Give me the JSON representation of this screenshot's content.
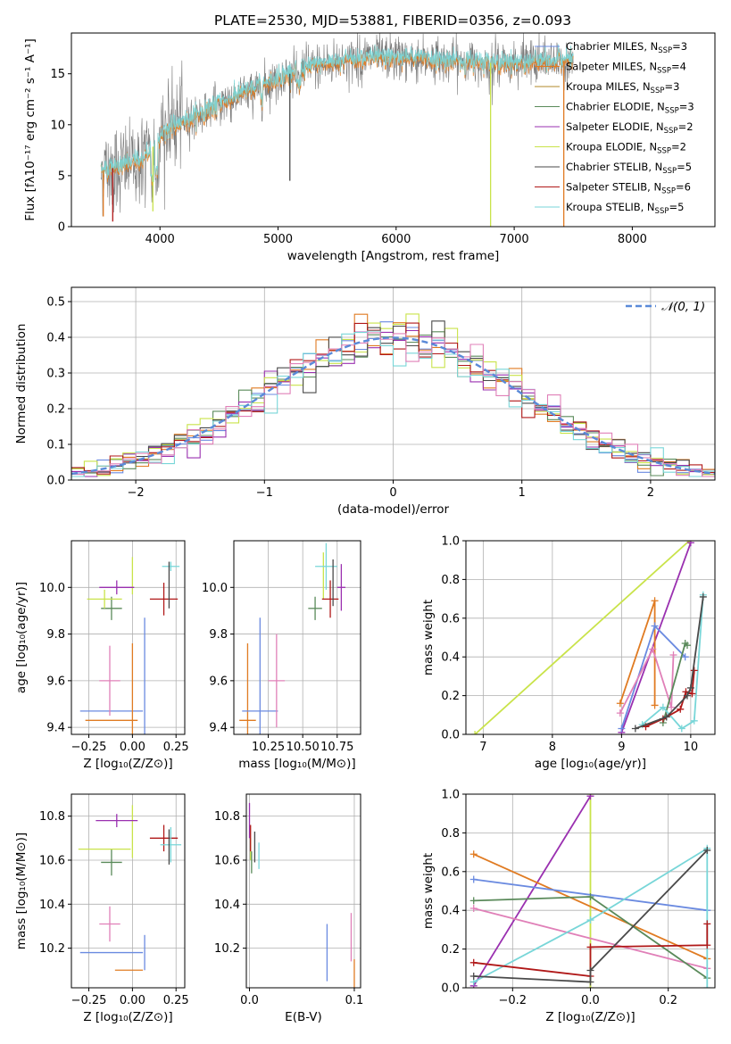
{
  "figure_title": "PLATE=2530, MJD=53881, FIBERID=0356, z=0.093",
  "colors": {
    "Chabrier MILES": "#6a8ae0",
    "Salpeter MILES": "#e07b22",
    "Kroupa MILES": "#b08a2a",
    "Chabrier ELODIE": "#5a8a5a",
    "Salpeter ELODIE": "#9a30b0",
    "Kroupa ELODIE": "#c9e34a",
    "Chabrier STELIB": "#4a4a4a",
    "Salpeter STELIB": "#b01818",
    "Kroupa STELIB": "#78d6d8",
    "Pink": "#e080b8",
    "gauss": "#5a8ad8"
  },
  "chart_data": [
    {
      "id": "spectrum",
      "type": "line",
      "xlabel": "wavelength [Angstrom, rest frame]",
      "ylabel": "Flux [fλ10⁻¹⁷ erg cm⁻² s⁻¹ A⁻¹]",
      "xlim": [
        3250,
        8700
      ],
      "ylim": [
        0,
        19
      ],
      "xticks": [
        4000,
        5000,
        6000,
        7000,
        8000
      ],
      "yticks": [
        0,
        5,
        10,
        15
      ],
      "grid": false,
      "legend": "top-right",
      "legend_entries": [
        {
          "base": "Chabrier MILES, N",
          "sub": "SSP",
          "tail": "=3"
        },
        {
          "base": "Salpeter MILES, N",
          "sub": "SSP",
          "tail": "=4"
        },
        {
          "base": "Kroupa MILES, N",
          "sub": "SSP",
          "tail": "=3"
        },
        {
          "base": "Chabrier ELODIE, N",
          "sub": "SSP",
          "tail": "=3"
        },
        {
          "base": "Salpeter ELODIE, N",
          "sub": "SSP",
          "tail": "=2"
        },
        {
          "base": "Kroupa ELODIE, N",
          "sub": "SSP",
          "tail": "=2"
        },
        {
          "base": "Chabrier STELIB, N",
          "sub": "SSP",
          "tail": "=5"
        },
        {
          "base": "Salpeter STELIB, N",
          "sub": "SSP",
          "tail": "=6"
        },
        {
          "base": "Kroupa STELIB, N",
          "sub": "SSP",
          "tail": "=5"
        }
      ],
      "continuum": [
        [
          3500,
          5.5
        ],
        [
          3700,
          6.0
        ],
        [
          3850,
          6.5
        ],
        [
          3950,
          8.0
        ],
        [
          4050,
          9.5
        ],
        [
          4300,
          10.8
        ],
        [
          4500,
          12.0
        ],
        [
          4800,
          13.5
        ],
        [
          5000,
          14.5
        ],
        [
          5200,
          15.5
        ],
        [
          5500,
          16.2
        ],
        [
          5800,
          16.6
        ],
        [
          6100,
          16.5
        ],
        [
          6400,
          16.3
        ],
        [
          6700,
          16.1
        ],
        [
          7000,
          16.0
        ],
        [
          7300,
          16.2
        ],
        [
          7500,
          16.3
        ]
      ],
      "glitches": [
        [
          3520,
          1.0
        ],
        [
          3600,
          0.5
        ],
        [
          3940,
          1.5
        ],
        [
          5100,
          4.5
        ],
        [
          6800,
          0.0
        ],
        [
          7420,
          0.0
        ]
      ]
    },
    {
      "id": "residual-hist",
      "type": "line",
      "xlabel": "(data-model)/error",
      "ylabel": "Normed distribution",
      "xlim": [
        -2.5,
        2.5
      ],
      "ylim": [
        0,
        0.54
      ],
      "xticks": [
        -2,
        -1,
        0,
        1,
        2
      ],
      "yticks": [
        0.0,
        0.1,
        0.2,
        0.3,
        0.4,
        0.5
      ],
      "grid": true,
      "legend": "top-right",
      "legend_label": "𝒩(0, 1)",
      "bin_width": 0.1,
      "bin_start": -2.5
    },
    {
      "id": "age-vs-z",
      "type": "scatter",
      "xlabel": "Z [log₁₀(Z/Z⊙)]",
      "ylabel": "age  [log₁₀(age/yr)]",
      "xlim": [
        -0.35,
        0.3
      ],
      "ylim": [
        9.37,
        10.2
      ],
      "xticks": [
        -0.25,
        0.0,
        0.25
      ],
      "xtick_labels": [
        "−0.25",
        "0.00",
        "0.25"
      ],
      "yticks": [
        9.4,
        9.6,
        9.8,
        10.0
      ],
      "grid": true,
      "points": [
        {
          "c": "Chabrier MILES",
          "x": -0.12,
          "xe": 0.18,
          "y": 9.47,
          "ye": 0.0
        },
        {
          "c": "Chabrier MILES",
          "x": 0.07,
          "xe": 0.0,
          "y": 9.47,
          "ye": 0.4
        },
        {
          "c": "Salpeter MILES",
          "x": -0.12,
          "xe": 0.15,
          "y": 9.43,
          "ye": 0.0
        },
        {
          "c": "Salpeter MILES",
          "x": -0.0,
          "xe": 0.0,
          "y": 9.43,
          "ye": 0.33
        },
        {
          "c": "Pink",
          "x": -0.13,
          "xe": 0.06,
          "y": 9.6,
          "ye": 0.15
        },
        {
          "c": "Chabrier ELODIE",
          "x": -0.12,
          "xe": 0.06,
          "y": 9.91,
          "ye": 0.05
        },
        {
          "c": "Kroupa ELODIE",
          "x": -0.16,
          "xe": 0.1,
          "y": 9.95,
          "ye": 0.04
        },
        {
          "c": "Kroupa ELODIE",
          "x": 0.0,
          "xe": 0.0,
          "y": 10.05,
          "ye": 0.08
        },
        {
          "c": "Salpeter ELODIE",
          "x": -0.09,
          "xe": 0.1,
          "y": 10.0,
          "ye": 0.03
        },
        {
          "c": "Salpeter STELIB",
          "x": 0.18,
          "xe": 0.08,
          "y": 9.95,
          "ye": 0.07
        },
        {
          "c": "Kroupa STELIB",
          "x": 0.22,
          "xe": 0.05,
          "y": 10.09,
          "ye": 0.02
        },
        {
          "c": "Chabrier STELIB",
          "x": 0.21,
          "xe": 0.0,
          "y": 10.01,
          "ye": 0.1
        }
      ]
    },
    {
      "id": "age-vs-mass",
      "type": "scatter",
      "xlabel": "mass [log₁₀(M/M⊙)]",
      "ylabel": "",
      "xlim": [
        10.0,
        10.92
      ],
      "ylim": [
        9.37,
        10.2
      ],
      "xticks": [
        10.25,
        10.5,
        10.75
      ],
      "xtick_labels": [
        "10.25",
        "10.50",
        "10.75"
      ],
      "yticks": [
        9.4,
        9.6,
        9.8,
        10.0
      ],
      "grid": true,
      "points": [
        {
          "c": "Salpeter MILES",
          "x": 10.1,
          "xe": 0.06,
          "y": 9.43,
          "ye": 0.33
        },
        {
          "c": "Chabrier MILES",
          "x": 10.19,
          "xe": 0.13,
          "y": 9.47,
          "ye": 0.4
        },
        {
          "c": "Pink",
          "x": 10.31,
          "xe": 0.06,
          "y": 9.6,
          "ye": 0.2
        },
        {
          "c": "Chabrier ELODIE",
          "x": 10.59,
          "xe": 0.05,
          "y": 9.91,
          "ye": 0.05
        },
        {
          "c": "Kroupa ELODIE",
          "x": 10.65,
          "xe": 0.0,
          "y": 10.05,
          "ye": 0.1
        },
        {
          "c": "Kroupa STELIB",
          "x": 10.67,
          "xe": 0.08,
          "y": 10.09,
          "ye": 0.1
        },
        {
          "c": "Salpeter STELIB",
          "x": 10.7,
          "xe": 0.06,
          "y": 9.95,
          "ye": 0.08
        },
        {
          "c": "Chabrier STELIB",
          "x": 10.72,
          "xe": 0.0,
          "y": 10.02,
          "ye": 0.1
        },
        {
          "c": "Salpeter ELODIE",
          "x": 10.78,
          "xe": 0.03,
          "y": 10.0,
          "ye": 0.1
        }
      ]
    },
    {
      "id": "weight-vs-age",
      "type": "line",
      "xlabel": "age  [log₁₀(age/yr)]",
      "ylabel": "mass weight",
      "xlim": [
        6.75,
        10.35
      ],
      "ylim": [
        0,
        1.0
      ],
      "xticks": [
        7,
        8,
        9,
        10
      ],
      "yticks": [
        0.0,
        0.2,
        0.4,
        0.6,
        0.8,
        1.0
      ],
      "grid": true,
      "series": [
        {
          "c": "Kroupa ELODIE",
          "pts": [
            [
              6.88,
              0.0
            ],
            [
              9.98,
              1.0
            ]
          ]
        },
        {
          "c": "Salpeter ELODIE",
          "pts": [
            [
              9.0,
              0.01
            ],
            [
              10.0,
              0.99
            ]
          ]
        },
        {
          "c": "Salpeter MILES",
          "pts": [
            [
              8.98,
              0.16
            ],
            [
              9.48,
              0.69
            ],
            [
              9.48,
              0.15
            ]
          ]
        },
        {
          "c": "Chabrier MILES",
          "pts": [
            [
              9.0,
              0.03
            ],
            [
              9.48,
              0.56
            ],
            [
              9.92,
              0.4
            ]
          ]
        },
        {
          "c": "Pink",
          "pts": [
            [
              8.98,
              0.11
            ],
            [
              9.45,
              0.44
            ],
            [
              9.72,
              0.14
            ],
            [
              9.75,
              0.41
            ]
          ]
        },
        {
          "c": "Chabrier ELODIE",
          "pts": [
            [
              9.6,
              0.06
            ],
            [
              9.92,
              0.47
            ],
            [
              9.95,
              0.46
            ]
          ]
        },
        {
          "c": "Kroupa STELIB",
          "pts": [
            [
              9.3,
              0.05
            ],
            [
              9.6,
              0.14
            ],
            [
              9.87,
              0.03
            ],
            [
              10.05,
              0.07
            ],
            [
              10.18,
              0.72
            ]
          ]
        },
        {
          "c": "Salpeter STELIB",
          "pts": [
            [
              9.35,
              0.04
            ],
            [
              9.6,
              0.08
            ],
            [
              9.85,
              0.13
            ],
            [
              9.93,
              0.22
            ],
            [
              10.02,
              0.21
            ],
            [
              10.05,
              0.33
            ]
          ]
        },
        {
          "c": "Chabrier STELIB",
          "pts": [
            [
              9.2,
              0.03
            ],
            [
              9.65,
              0.09
            ],
            [
              9.95,
              0.2
            ],
            [
              10.0,
              0.24
            ],
            [
              10.18,
              0.71
            ]
          ]
        }
      ]
    },
    {
      "id": "mass-vs-z",
      "type": "scatter",
      "xlabel": "Z [log₁₀(Z/Z⊙)]",
      "ylabel": "mass [log₁₀(M/M⊙)]",
      "xlim": [
        -0.35,
        0.3
      ],
      "ylim": [
        10.02,
        10.9
      ],
      "xticks": [
        -0.25,
        0.0,
        0.25
      ],
      "xtick_labels": [
        "−0.25",
        "0.00",
        "0.25"
      ],
      "yticks": [
        10.2,
        10.4,
        10.6,
        10.8
      ],
      "grid": true,
      "points": [
        {
          "c": "Chabrier MILES",
          "x": -0.12,
          "xe": 0.18,
          "y": 10.18,
          "ye": 0.0
        },
        {
          "c": "Chabrier MILES",
          "x": 0.07,
          "xe": 0.0,
          "y": 10.18,
          "ye": 0.08
        },
        {
          "c": "Salpeter MILES",
          "x": -0.02,
          "xe": 0.08,
          "y": 10.1,
          "ye": 0.0
        },
        {
          "c": "Salpeter MILES",
          "x": 0.07,
          "xe": 0.0,
          "y": 10.1,
          "ye": 0.0
        },
        {
          "c": "Pink",
          "x": -0.13,
          "xe": 0.06,
          "y": 10.31,
          "ye": 0.08
        },
        {
          "c": "Chabrier ELODIE",
          "x": -0.12,
          "xe": 0.06,
          "y": 10.59,
          "ye": 0.06
        },
        {
          "c": "Kroupa ELODIE",
          "x": -0.16,
          "xe": 0.15,
          "y": 10.65,
          "ye": 0.0
        },
        {
          "c": "Kroupa ELODIE",
          "x": 0.0,
          "xe": 0.0,
          "y": 10.73,
          "ye": 0.12
        },
        {
          "c": "Salpeter ELODIE",
          "x": -0.09,
          "xe": 0.12,
          "y": 10.78,
          "ye": 0.03
        },
        {
          "c": "Salpeter STELIB",
          "x": 0.18,
          "xe": 0.08,
          "y": 10.7,
          "ye": 0.06
        },
        {
          "c": "Kroupa STELIB",
          "x": 0.22,
          "xe": 0.06,
          "y": 10.67,
          "ye": 0.08
        },
        {
          "c": "Chabrier STELIB",
          "x": 0.21,
          "xe": 0.0,
          "y": 10.66,
          "ye": 0.08
        }
      ]
    },
    {
      "id": "mass-vs-ebv",
      "type": "scatter",
      "xlabel": "E(B-V)",
      "ylabel": "",
      "xlim": [
        -0.003,
        0.106
      ],
      "ylim": [
        10.02,
        10.9
      ],
      "xticks": [
        0.0,
        0.1
      ],
      "xtick_labels": [
        "0.0",
        "0.1"
      ],
      "yticks": [
        10.2,
        10.4,
        10.6,
        10.8
      ],
      "grid": true,
      "points": [
        {
          "c": "Salpeter ELODIE",
          "x": 0.0,
          "xe": 0.0,
          "y": 10.78,
          "ye": 0.08
        },
        {
          "c": "Kroupa ELODIE",
          "x": 0.001,
          "xe": 0.0,
          "y": 10.65,
          "ye": 0.05
        },
        {
          "c": "Chabrier ELODIE",
          "x": 0.002,
          "xe": 0.0,
          "y": 10.59,
          "ye": 0.05
        },
        {
          "c": "Salpeter STELIB",
          "x": 0.001,
          "xe": 0.0,
          "y": 10.7,
          "ye": 0.06
        },
        {
          "c": "Chabrier STELIB",
          "x": 0.005,
          "xe": 0.0,
          "y": 10.66,
          "ye": 0.07
        },
        {
          "c": "Kroupa STELIB",
          "x": 0.009,
          "xe": 0.0,
          "y": 10.62,
          "ye": 0.06
        },
        {
          "c": "Chabrier MILES",
          "x": 0.074,
          "xe": 0.0,
          "y": 10.18,
          "ye": 0.13
        },
        {
          "c": "Pink",
          "x": 0.097,
          "xe": 0.0,
          "y": 10.25,
          "ye": 0.11
        },
        {
          "c": "Salpeter MILES",
          "x": 0.1,
          "xe": 0.0,
          "y": 10.08,
          "ye": 0.07
        }
      ]
    },
    {
      "id": "weight-vs-z",
      "type": "line",
      "xlabel": "Z [log₁₀(Z/Z⊙)]",
      "ylabel": "mass weight",
      "xlim": [
        -0.32,
        0.32
      ],
      "ylim": [
        0,
        1.0
      ],
      "xticks": [
        -0.2,
        0.0,
        0.2
      ],
      "xtick_labels": [
        "−0.2",
        "0.0",
        "0.2"
      ],
      "yticks": [
        0.0,
        0.2,
        0.4,
        0.6,
        0.8,
        1.0
      ],
      "grid": true,
      "series": [
        {
          "c": "Kroupa ELODIE",
          "pts": [
            [
              0.0,
              0.0
            ],
            [
              0.0,
              1.0
            ]
          ]
        },
        {
          "c": "Salpeter ELODIE",
          "pts": [
            [
              -0.3,
              0.01
            ],
            [
              0.0,
              0.99
            ]
          ]
        },
        {
          "c": "Salpeter MILES",
          "pts": [
            [
              -0.3,
              0.69
            ],
            [
              0.3,
              0.15
            ]
          ]
        },
        {
          "c": "Chabrier MILES",
          "pts": [
            [
              -0.3,
              0.56
            ],
            [
              0.3,
              0.4
            ]
          ]
        },
        {
          "c": "Pink",
          "pts": [
            [
              -0.3,
              0.41
            ],
            [
              0.3,
              0.1
            ]
          ]
        },
        {
          "c": "Chabrier ELODIE",
          "pts": [
            [
              -0.3,
              0.45
            ],
            [
              0.0,
              0.47
            ],
            [
              0.3,
              0.05
            ]
          ]
        },
        {
          "c": "Kroupa STELIB",
          "pts": [
            [
              -0.3,
              0.03
            ],
            [
              0.0,
              0.35
            ],
            [
              0.3,
              0.72
            ],
            [
              0.3,
              0.0
            ]
          ]
        },
        {
          "c": "Salpeter STELIB",
          "pts": [
            [
              -0.3,
              0.13
            ],
            [
              0.0,
              0.06
            ],
            [
              0.0,
              0.21
            ],
            [
              0.3,
              0.22
            ],
            [
              0.3,
              0.33
            ]
          ]
        },
        {
          "c": "Chabrier STELIB",
          "pts": [
            [
              -0.3,
              0.06
            ],
            [
              0.0,
              0.03
            ],
            [
              0.0,
              0.09
            ],
            [
              0.3,
              0.71
            ]
          ]
        }
      ]
    }
  ]
}
